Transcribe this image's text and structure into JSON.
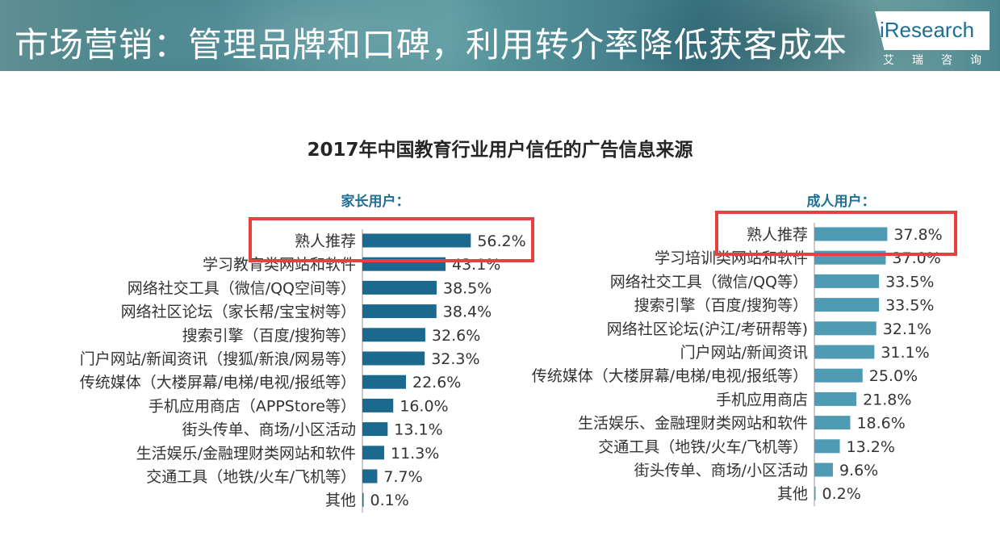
{
  "header": {
    "title": "市场营销：管理品牌和口碑，利用转介率降低获客成本",
    "logo_text": "iResearch",
    "logo_cn": "艾瑞咨询"
  },
  "colors": {
    "parents_bar": "#1b6a8e",
    "adult_bar": "#4f9bb4",
    "highlight_box": "#e8403e",
    "subtitle": "#1d6f95"
  },
  "chart_data": [
    {
      "type": "bar",
      "orientation": "horizontal",
      "title": "2017年中国教育行业用户信任的广告信息来源",
      "subtitle": "家长用户：",
      "unit": "%",
      "xlim": [
        0,
        60
      ],
      "categories": [
        "熟人推荐",
        "学习教育类网站和软件",
        "网络社交工具（微信/QQ空间等）",
        "网络社区论坛（家长帮/宝宝树等）",
        "搜索引擎（百度/搜狗等）",
        "门户网站/新闻资讯（搜狐/新浪/网易等）",
        "传统媒体（大楼屏幕/电梯/电视/报纸等）",
        "手机应用商店（APPStore等）",
        "街头传单、商场/小区活动",
        "生活娱乐/金融理财类网站和软件",
        "交通工具（地铁/火车/飞机等）",
        "其他"
      ],
      "values": [
        56.2,
        43.1,
        38.5,
        38.4,
        32.6,
        32.3,
        22.6,
        16.0,
        13.1,
        11.3,
        7.7,
        0.1
      ],
      "labels": [
        "56.2%",
        "43.1%",
        "38.5%",
        "38.4%",
        "32.6%",
        "32.3%",
        "22.6%",
        "16.0%",
        "13.1%",
        "11.3%",
        "7.7%",
        "0.1%"
      ],
      "highlighted_category": "熟人推荐"
    },
    {
      "type": "bar",
      "orientation": "horizontal",
      "subtitle": "成人用户：",
      "unit": "%",
      "xlim": [
        0,
        60
      ],
      "categories": [
        "熟人推荐",
        "学习培训类网站和软件",
        "网络社交工具（微信/QQ等）",
        "搜索引擎（百度/搜狗等）",
        "网络社区论坛(沪江/考研帮等)",
        "门户网站/新闻资讯",
        "传统媒体（大楼屏幕/电梯/电视/报纸等）",
        "手机应用商店",
        "生活娱乐、金融理财类网站和软件",
        "交通工具（地铁/火车/飞机等）",
        "街头传单、商场/小区活动",
        "其他"
      ],
      "values": [
        37.8,
        37.0,
        33.5,
        33.5,
        32.1,
        31.1,
        25.0,
        21.8,
        18.6,
        13.2,
        9.6,
        0.2
      ],
      "labels": [
        "37.8%",
        "37.0%",
        "33.5%",
        "33.5%",
        "32.1%",
        "31.1%",
        "25.0%",
        "21.8%",
        "18.6%",
        "13.2%",
        "9.6%",
        "0.2%"
      ],
      "highlighted_category": "熟人推荐"
    }
  ]
}
